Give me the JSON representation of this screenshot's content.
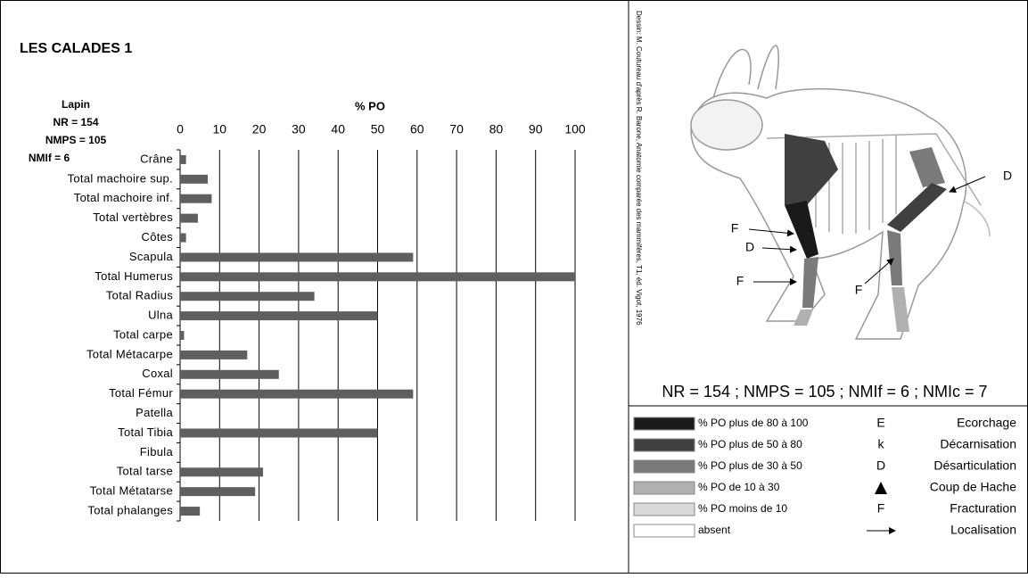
{
  "chart_data": {
    "type": "hbar",
    "title": "LES CALADES 1",
    "x_label": "% PO",
    "annotations": [
      "Lapin",
      "NR = 154",
      "NMPS = 105",
      "NMIf = 6"
    ],
    "categories": [
      "Crâne",
      "Total machoire sup.",
      "Total machoire inf.",
      "Total vertèbres",
      "Côtes",
      "Scapula",
      "Total Humerus",
      "Total Radius",
      "Ulna",
      "Total carpe",
      "Total Métacarpe",
      "Coxal",
      "Total Fémur",
      "Patella",
      "Total Tibia",
      "Fibula",
      "Total tarse",
      "Total Métatarse",
      "Total phalanges"
    ],
    "values": [
      1.5,
      7,
      8,
      4.5,
      1.5,
      59,
      100,
      34,
      50,
      1,
      17,
      25,
      59,
      0,
      50,
      0,
      21,
      19,
      5
    ],
    "color": "#5f5f5f",
    "xlim": [
      0,
      100
    ],
    "xticks": [
      0,
      10,
      20,
      30,
      40,
      50,
      60,
      70,
      80,
      90,
      100
    ],
    "grid": true
  },
  "illustration": {
    "credit": "Dessin: M. Coutureau d'après R. Barone, Anatomie comparée des mammifères, T1, éd. Vigot, 1976",
    "labels": [
      "D",
      "F",
      "D",
      "F",
      "F"
    ],
    "caption": "NR = 154 ; NMPS = 105 ; NMIf = 6 ; NMIc = 7"
  },
  "legend": {
    "shades": [
      "% PO plus de 80 à 100",
      "% PO  plus de 50 à 80",
      "% PO plus de 30 à 50",
      "% PO de 10 à 30",
      "% PO moins de 10",
      "absent"
    ],
    "codes": [
      "E",
      "k",
      "D",
      "F"
    ],
    "meanings": [
      "Ecorchage",
      "Décarnisation",
      "Désarticulation",
      "Coup de Hache",
      "Fracturation",
      "Localisation"
    ]
  }
}
